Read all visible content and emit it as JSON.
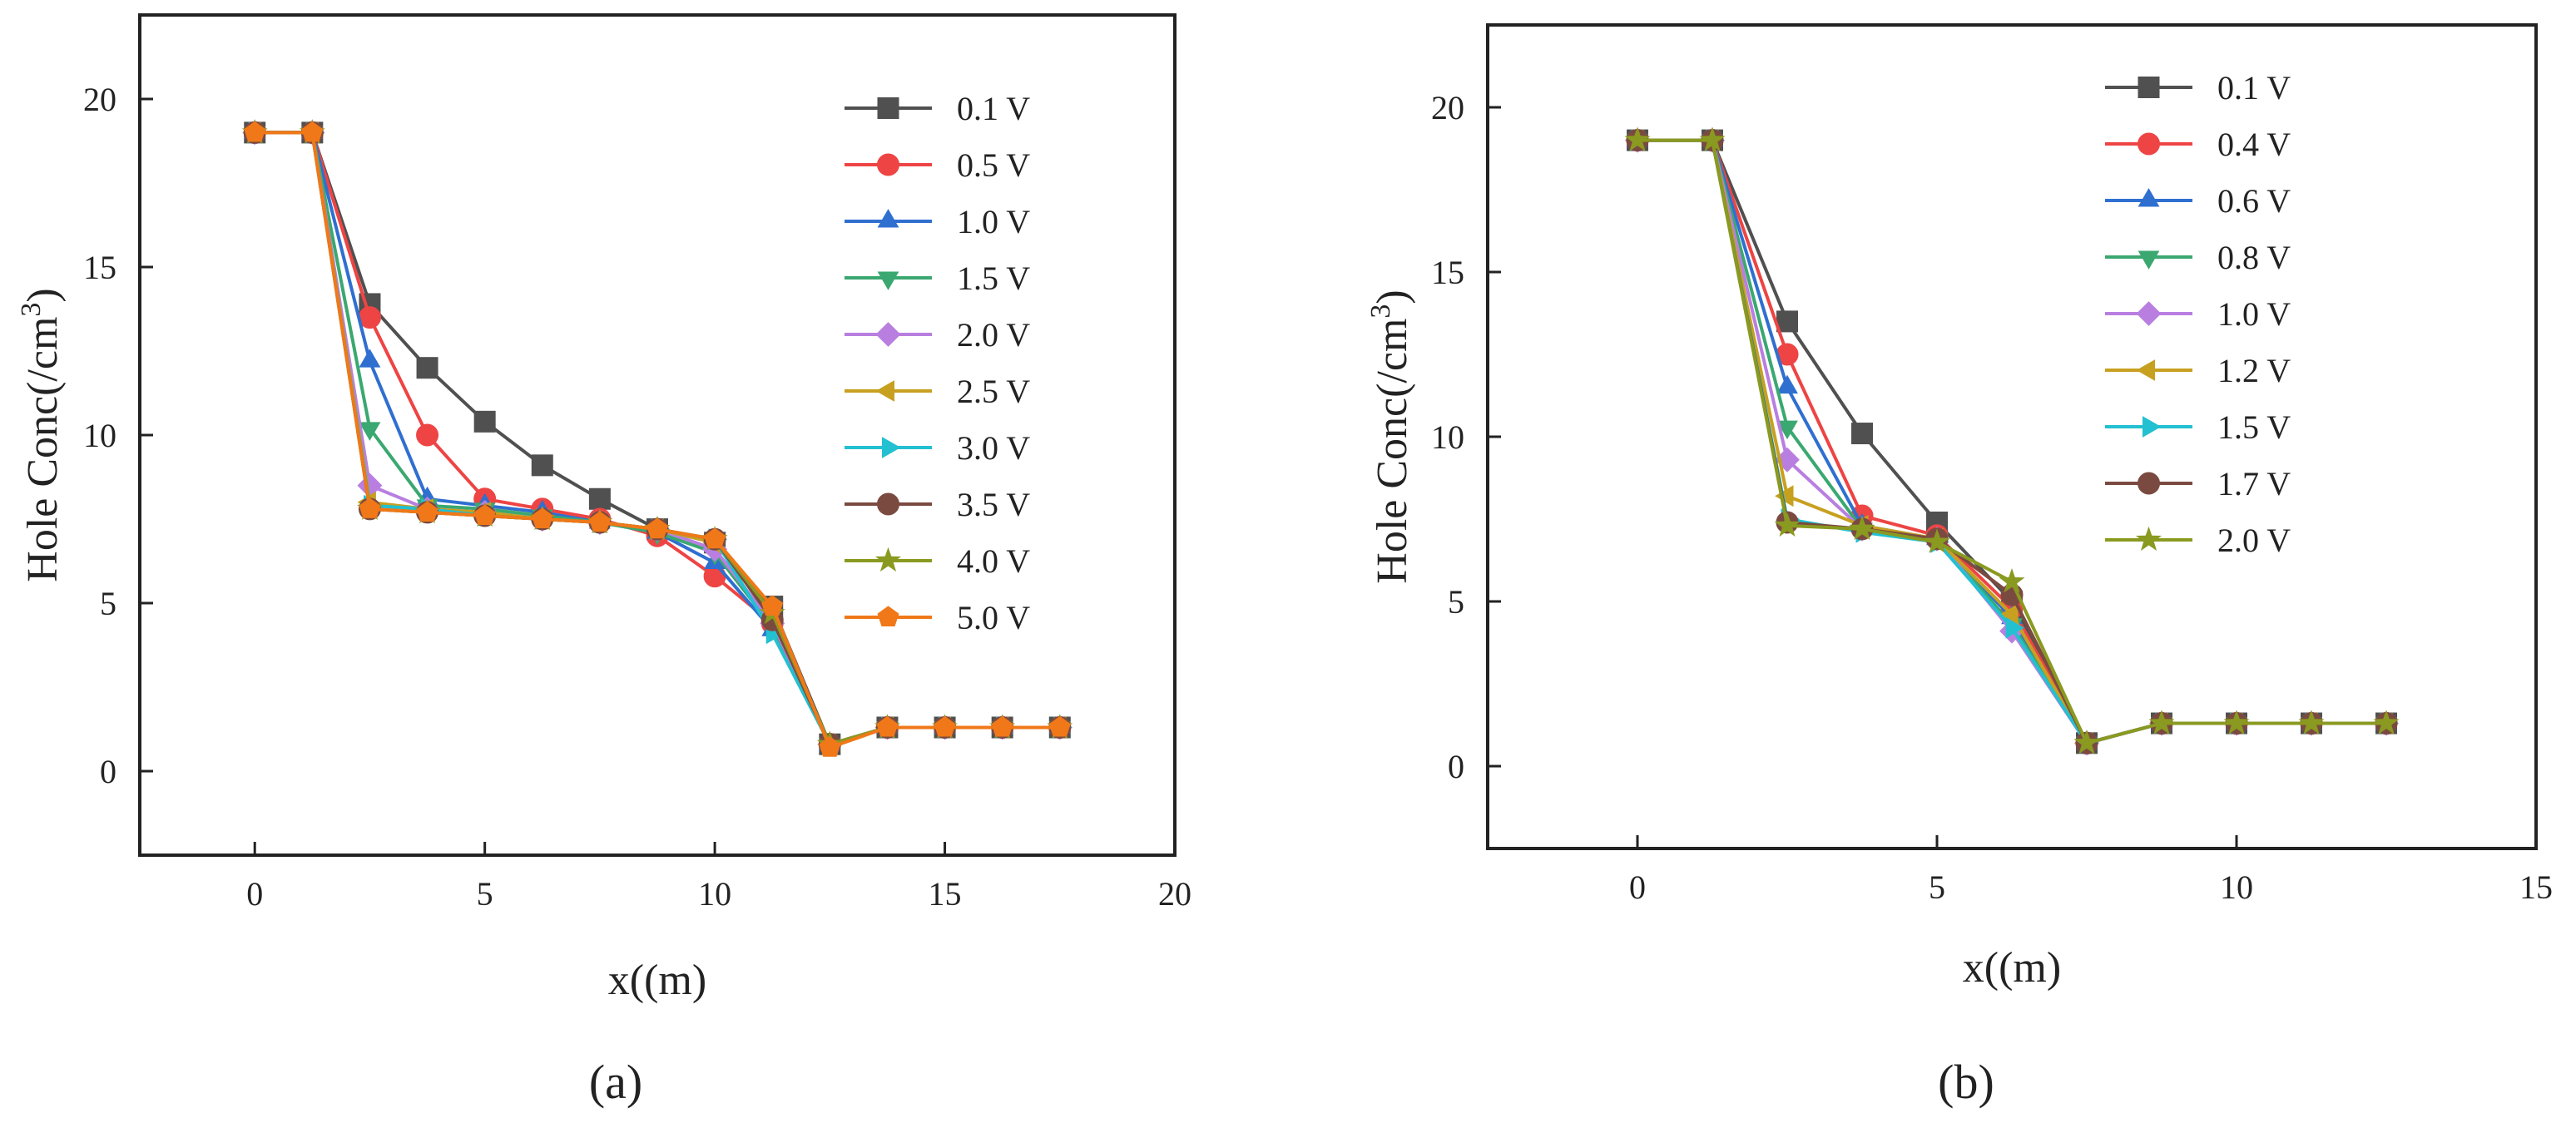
{
  "figure": {
    "captions": [
      "(a)",
      "(b)"
    ]
  },
  "chart_data": [
    {
      "type": "line",
      "panel_label": "(a)",
      "xlabel": "x((m)",
      "ylabel_main": "Hole Conc(/cm",
      "ylabel_sup": "3",
      "ylabel_close": ")",
      "xlim": [
        -2.5,
        20
      ],
      "ylim": [
        -2.5,
        22.5
      ],
      "xticks": [
        0,
        5,
        10,
        15,
        20
      ],
      "yticks": [
        0,
        5,
        10,
        15,
        20
      ],
      "legend_position": "top-right",
      "x": [
        0,
        1.25,
        2.5,
        3.75,
        5,
        6.25,
        7.5,
        8.75,
        10,
        11.25,
        12.5,
        13.75,
        15,
        16.25,
        17.5
      ],
      "series": [
        {
          "name": "0.1 V",
          "color": "#505050",
          "marker": "square",
          "values": [
            19,
            19,
            13.9,
            12,
            10.4,
            9.1,
            8.1,
            7.2,
            6.8,
            4.9,
            0.8,
            1.3,
            1.3,
            1.3,
            1.3
          ]
        },
        {
          "name": "0.5 V",
          "color": "#ee4444",
          "marker": "circle",
          "values": [
            19,
            19,
            13.5,
            10,
            8.1,
            7.8,
            7.5,
            7,
            5.8,
            4.4,
            0.8,
            1.3,
            1.3,
            1.3,
            1.3
          ]
        },
        {
          "name": "1.0 V",
          "color": "#2f6fd0",
          "marker": "triangle-up",
          "values": [
            19,
            19,
            12.2,
            8.1,
            7.9,
            7.7,
            7.4,
            7.1,
            6.2,
            4.2,
            0.8,
            1.3,
            1.3,
            1.3,
            1.3
          ]
        },
        {
          "name": "1.5 V",
          "color": "#3aa870",
          "marker": "triangle-down",
          "values": [
            19,
            19,
            10.2,
            7.9,
            7.8,
            7.6,
            7.4,
            7.1,
            6.5,
            4.3,
            0.8,
            1.3,
            1.3,
            1.3,
            1.3
          ]
        },
        {
          "name": "2.0 V",
          "color": "#b87fe0",
          "marker": "diamond",
          "values": [
            19,
            19,
            8.5,
            7.8,
            7.7,
            7.5,
            7.4,
            7.2,
            6.6,
            4.4,
            0.8,
            1.3,
            1.3,
            1.3,
            1.3
          ]
        },
        {
          "name": "2.5 V",
          "color": "#c8a020",
          "marker": "triangle-left",
          "values": [
            19,
            19,
            8,
            7.8,
            7.7,
            7.5,
            7.4,
            7.2,
            6.8,
            4.6,
            0.8,
            1.3,
            1.3,
            1.3,
            1.3
          ]
        },
        {
          "name": "3.0 V",
          "color": "#22c0d0",
          "marker": "triangle-right",
          "values": [
            19,
            19,
            7.9,
            7.8,
            7.6,
            7.5,
            7.4,
            7.2,
            6.9,
            4.1,
            0.8,
            1.3,
            1.3,
            1.3,
            1.3
          ]
        },
        {
          "name": "3.5 V",
          "color": "#7a4a40",
          "marker": "circle",
          "values": [
            19,
            19,
            7.8,
            7.7,
            7.6,
            7.5,
            7.4,
            7.2,
            6.9,
            4.5,
            0.8,
            1.3,
            1.3,
            1.3,
            1.3
          ]
        },
        {
          "name": "4.0 V",
          "color": "#8a9a20",
          "marker": "star",
          "values": [
            19,
            19,
            7.8,
            7.7,
            7.6,
            7.5,
            7.4,
            7.2,
            6.9,
            4.7,
            0.8,
            1.3,
            1.3,
            1.3,
            1.3
          ]
        },
        {
          "name": "5.0 V",
          "color": "#f07818",
          "marker": "pentagon",
          "values": [
            19,
            19,
            7.8,
            7.7,
            7.6,
            7.5,
            7.4,
            7.2,
            6.9,
            4.9,
            0.7,
            1.3,
            1.3,
            1.3,
            1.3
          ]
        }
      ]
    },
    {
      "type": "line",
      "panel_label": "(b)",
      "xlabel": "x((m)",
      "ylabel_main": "Hole Conc(/cm",
      "ylabel_sup": "3",
      "ylabel_close": ")",
      "xlim": [
        -2.5,
        15
      ],
      "ylim": [
        -2.5,
        22.5
      ],
      "xticks": [
        0,
        5,
        10,
        15
      ],
      "yticks": [
        0,
        5,
        10,
        15,
        20
      ],
      "legend_position": "top-center",
      "x": [
        0,
        1.25,
        2.5,
        3.75,
        5,
        6.25,
        7.5,
        8.75,
        10,
        11.25,
        12.5
      ],
      "series": [
        {
          "name": "0.1 V",
          "color": "#505050",
          "marker": "square",
          "values": [
            19,
            19,
            13.5,
            10.1,
            7.4,
            5,
            0.7,
            1.3,
            1.3,
            1.3,
            1.3
          ]
        },
        {
          "name": "0.4 V",
          "color": "#ee4444",
          "marker": "circle",
          "values": [
            19,
            19,
            12.5,
            7.6,
            7,
            4.8,
            0.7,
            1.3,
            1.3,
            1.3,
            1.3
          ]
        },
        {
          "name": "0.6 V",
          "color": "#2f6fd0",
          "marker": "triangle-up",
          "values": [
            19,
            19,
            11.5,
            7.3,
            6.9,
            4.5,
            0.7,
            1.3,
            1.3,
            1.3,
            1.3
          ]
        },
        {
          "name": "0.8 V",
          "color": "#3aa870",
          "marker": "triangle-down",
          "values": [
            19,
            19,
            10.3,
            7.2,
            6.9,
            4.3,
            0.7,
            1.3,
            1.3,
            1.3,
            1.3
          ]
        },
        {
          "name": "1.0 V",
          "color": "#b87fe0",
          "marker": "diamond",
          "values": [
            19,
            19,
            9.3,
            7.2,
            6.9,
            4.1,
            0.7,
            1.3,
            1.3,
            1.3,
            1.3
          ]
        },
        {
          "name": "1.2 V",
          "color": "#c8a020",
          "marker": "triangle-left",
          "values": [
            19,
            19,
            8.2,
            7.3,
            6.9,
            4.6,
            0.7,
            1.3,
            1.3,
            1.3,
            1.3
          ]
        },
        {
          "name": "1.5 V",
          "color": "#22c0d0",
          "marker": "triangle-right",
          "values": [
            19,
            19,
            7.5,
            7.1,
            6.8,
            4.2,
            0.7,
            1.3,
            1.3,
            1.3,
            1.3
          ]
        },
        {
          "name": "1.7 V",
          "color": "#7a4a40",
          "marker": "circle",
          "values": [
            19,
            19,
            7.4,
            7.2,
            6.9,
            5.2,
            0.7,
            1.3,
            1.3,
            1.3,
            1.3
          ]
        },
        {
          "name": "2.0 V",
          "color": "#8a9a20",
          "marker": "star",
          "values": [
            19,
            19,
            7.3,
            7.2,
            6.8,
            5.6,
            0.7,
            1.3,
            1.3,
            1.3,
            1.3
          ]
        }
      ]
    }
  ]
}
